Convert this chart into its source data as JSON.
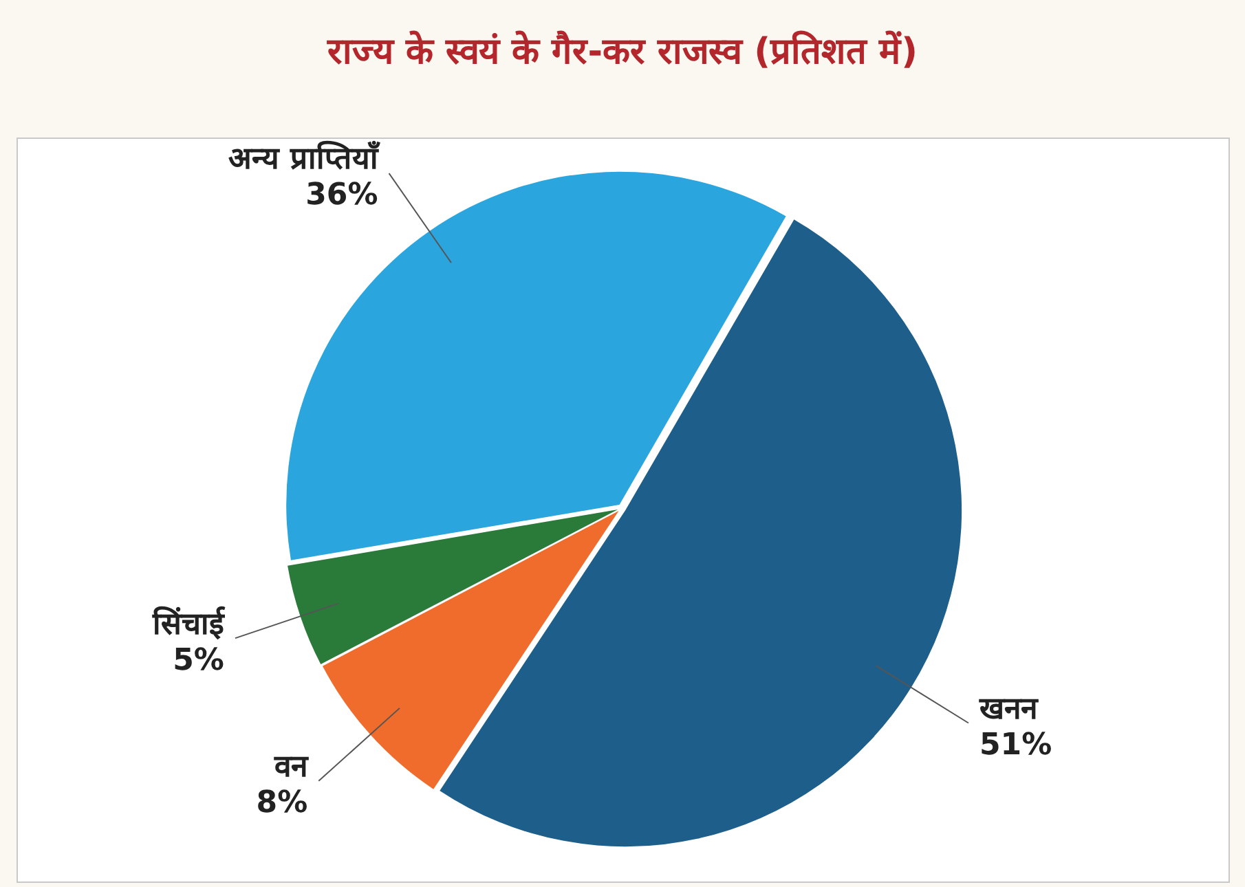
{
  "chart_data": {
    "type": "pie",
    "title": "राज्य के स्वयं के गैर-कर राजस्व (प्रतिशत में)",
    "categories": [
      "खनन",
      "वन",
      "सिंचाई",
      "अन्य प्राप्तियाँ"
    ],
    "values": [
      51,
      8,
      5,
      36
    ],
    "colors": [
      "#1d5f8a",
      "#ef6c2c",
      "#2a7a3a",
      "#2aa5de"
    ],
    "value_labels": [
      "51%",
      "8%",
      "5%",
      "36%"
    ],
    "legend": false
  }
}
